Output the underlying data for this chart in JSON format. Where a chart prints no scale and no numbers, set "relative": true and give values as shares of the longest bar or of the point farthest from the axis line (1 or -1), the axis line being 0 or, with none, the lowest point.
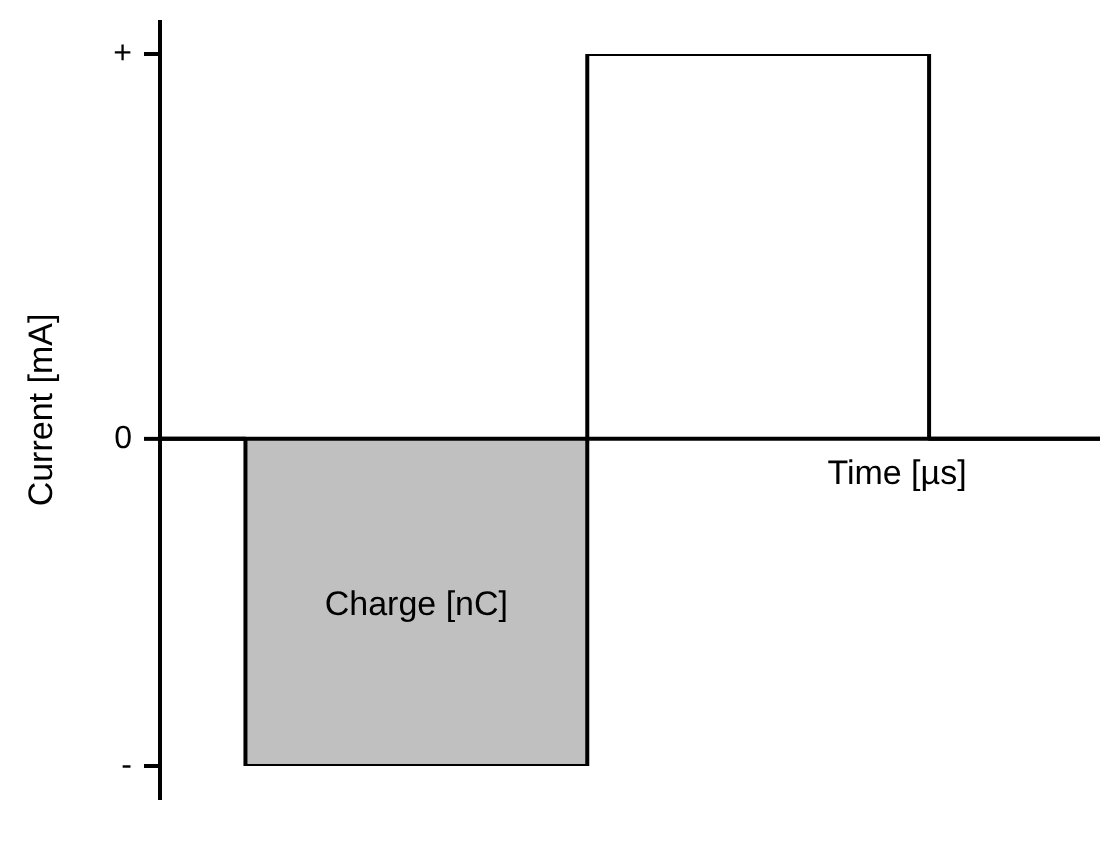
{
  "chart_data": {
    "type": "step",
    "xlabel": "Time [µs]",
    "ylabel": "Current [mA]",
    "categories": [
      null,
      null,
      null,
      null,
      null,
      null,
      null,
      null,
      null,
      null,
      null,
      null
    ],
    "series": [
      {
        "type": "area",
        "color": "#c0c0c0",
        "values": [
          null,
          -0.85,
          -0.85,
          -0.85,
          -0.85,
          -0.85,
          null,
          null,
          null,
          null,
          null,
          null
        ]
      },
      {
        "color": "#000000",
        "values": [
          0,
          -0.85,
          -0.85,
          -0.85,
          -0.85,
          1,
          1,
          1,
          1,
          0,
          0,
          0
        ]
      }
    ],
    "relative": true,
    "annotations": [
      "Charge [nC]",
      "+",
      "0",
      "-"
    ],
    "tick_labels": "y"
  }
}
